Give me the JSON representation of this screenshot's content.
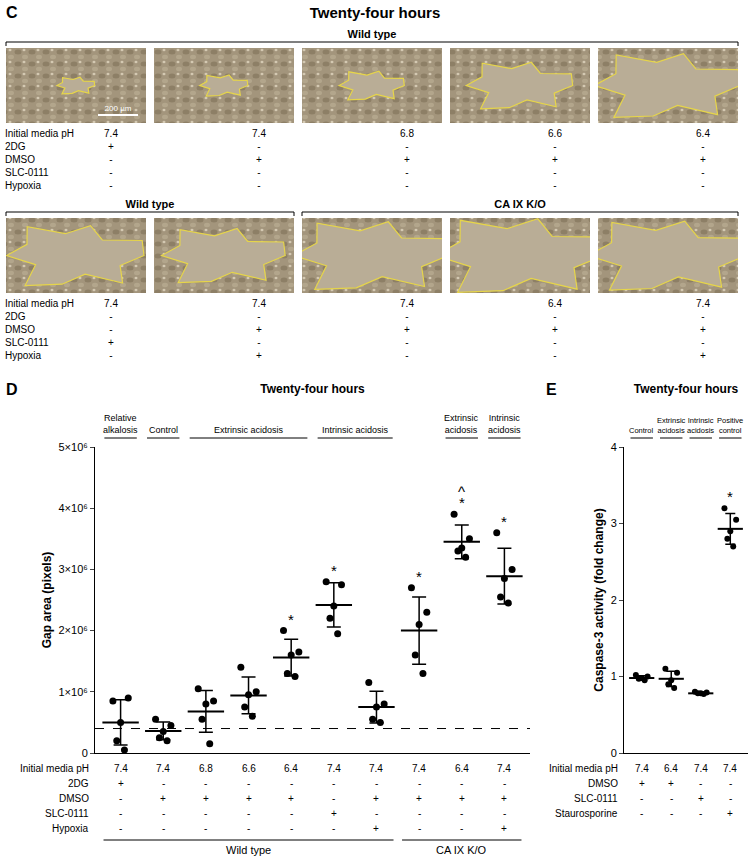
{
  "panel_c": {
    "panel": "C",
    "title": "Twenty-four hours",
    "scale_bar": "200 µm",
    "row_labels": [
      "Initial media pH",
      "2DG",
      "DMSO",
      "SLC-0111",
      "Hypoxia"
    ],
    "rows": [
      {
        "groups": [
          {
            "label": "Wild type",
            "count": 5
          }
        ],
        "columns": [
          [
            "7.4",
            "+",
            "-",
            "-",
            "-"
          ],
          [
            "7.4",
            "-",
            "+",
            "-",
            "-"
          ],
          [
            "6.8",
            "-",
            "+",
            "-",
            "-"
          ],
          [
            "6.6",
            "-",
            "+",
            "-",
            "-"
          ],
          [
            "6.4",
            "-",
            "+",
            "-",
            "-"
          ]
        ]
      },
      {
        "groups": [
          {
            "label": "Wild type",
            "count": 2
          },
          {
            "label": "CA IX K/O",
            "count": 3
          }
        ],
        "columns": [
          [
            "7.4",
            "-",
            "-",
            "+",
            "-"
          ],
          [
            "7.4",
            "-",
            "+",
            "-",
            "+"
          ],
          [
            "7.4",
            "-",
            "+",
            "-",
            "-"
          ],
          [
            "6.4",
            "-",
            "+",
            "-",
            "-"
          ],
          [
            "7.4",
            "-",
            "+",
            "-",
            "+"
          ]
        ]
      }
    ]
  },
  "chart_data": [
    {
      "type": "scatter",
      "panel": "D",
      "title": "Twenty-four hours",
      "y_label": "Gap area (pixels)",
      "categories": [
        null,
        null,
        null,
        null,
        null,
        null,
        null,
        null,
        null,
        null
      ],
      "values": [
        500000,
        360000,
        680000,
        940000,
        1560000,
        2420000,
        750000,
        2000000,
        3450000,
        2890000
      ],
      "error": [
        370000,
        145000,
        340000,
        300000,
        300000,
        360000,
        260000,
        550000,
        275000,
        455000
      ],
      "points": [
        [
          850000,
          900000,
          500000,
          200000,
          50000
        ],
        [
          550000,
          450000,
          350000,
          250000,
          200000
        ],
        [
          1050000,
          850000,
          800000,
          550000,
          150000
        ],
        [
          1400000,
          1000000,
          950000,
          750000,
          600000
        ],
        [
          2000000,
          1650000,
          1600000,
          1300000,
          1250000
        ],
        [
          2800000,
          2750000,
          2400000,
          2200000,
          1950000
        ],
        [
          1150000,
          800000,
          750000,
          550000,
          500000
        ],
        [
          2700000,
          2300000,
          2100000,
          1600000,
          1300000
        ],
        [
          3900000,
          3500000,
          3350000,
          3300000,
          3200000
        ],
        [
          3600000,
          3000000,
          2850000,
          2550000,
          2450000
        ]
      ],
      "reference_line": 400000,
      "color": "#000000",
      "marker": "circle",
      "grid": false,
      "tick_labels": "y",
      "ylim": [
        0,
        5000000
      ],
      "yticks": [
        0,
        {
          "value": 1000000,
          "label": "1×10⁶"
        },
        {
          "value": 2000000,
          "label": "2×10⁶"
        },
        {
          "value": 3000000,
          "label": "3×10⁶"
        },
        {
          "value": 4000000,
          "label": "4×10⁶"
        },
        {
          "value": 5000000,
          "label": "5×10⁶"
        }
      ],
      "header_groups": [
        {
          "label": "Relative alkalosis",
          "from": 0,
          "to": 0
        },
        {
          "label": "Control",
          "from": 1,
          "to": 1
        },
        {
          "label": "Extrinsic acidosis",
          "from": 2,
          "to": 4
        },
        {
          "label": "Intrinsic acidosis",
          "from": 5,
          "to": 6
        },
        {
          "label": "Extrinsic acidosis",
          "from": 8,
          "to": 8
        },
        {
          "label": "Intrinsic acidosis",
          "from": 9,
          "to": 9
        }
      ],
      "condition_rows": [
        "Initial media pH",
        "2DG",
        "DMSO",
        "SLC-0111",
        "Hypoxia"
      ],
      "condition_columns": [
        [
          "7.4",
          "+",
          "-",
          "-",
          "-"
        ],
        [
          "7.4",
          "-",
          "+",
          "-",
          "-"
        ],
        [
          "6.8",
          "-",
          "+",
          "-",
          "-"
        ],
        [
          "6.6",
          "-",
          "+",
          "-",
          "-"
        ],
        [
          "6.4",
          "-",
          "+",
          "-",
          "-"
        ],
        [
          "7.4",
          "-",
          "-",
          "+",
          "-"
        ],
        [
          "7.4",
          "-",
          "+",
          "-",
          "+"
        ],
        [
          "7.4",
          "-",
          "+",
          "-",
          "-"
        ],
        [
          "6.4",
          "-",
          "+",
          "-",
          "-"
        ],
        [
          "7.4",
          "-",
          "+",
          "-",
          "+"
        ]
      ],
      "bottom_groups": [
        {
          "label": "Wild type",
          "from": 0,
          "to": 6
        },
        {
          "label": "CA IX K/O",
          "from": 7,
          "to": 9
        }
      ],
      "significance": [
        {
          "index": 4,
          "label": "*"
        },
        {
          "index": 5,
          "label": "*"
        },
        {
          "index": 7,
          "label": "*"
        },
        {
          "index": 8,
          "label": "*"
        },
        {
          "index": 8,
          "label": "^"
        },
        {
          "index": 9,
          "label": "*"
        }
      ]
    },
    {
      "type": "scatter",
      "panel": "E",
      "title": "Twenty-four hours",
      "y_label": "Caspase-3 activity (fold change)",
      "categories": [
        null,
        null,
        null,
        null
      ],
      "values": [
        0.98,
        0.97,
        0.78,
        2.93
      ],
      "error": [
        0.03,
        0.1,
        0.01,
        0.2
      ],
      "points": [
        [
          1.02,
          1.0,
          0.98,
          0.97,
          0.95
        ],
        [
          1.1,
          1.05,
          0.95,
          0.9,
          0.85
        ],
        [
          0.8,
          0.79,
          0.78,
          0.78,
          0.77
        ],
        [
          3.2,
          3.05,
          2.9,
          2.8,
          2.7
        ]
      ],
      "color": "#000000",
      "marker": "circle",
      "grid": false,
      "tick_labels": "y",
      "ylim": [
        0,
        4
      ],
      "yticks": [
        0,
        1,
        2,
        3,
        4
      ],
      "header_groups": [
        {
          "label": "Control",
          "from": 0,
          "to": 0
        },
        {
          "label": "Extrinsic acidosis",
          "from": 1,
          "to": 1
        },
        {
          "label": "Intrinsic acidosis",
          "from": 2,
          "to": 2
        },
        {
          "label": "Positive control",
          "from": 3,
          "to": 3
        }
      ],
      "condition_rows": [
        "Initial media pH",
        "DMSO",
        "SLC-0111",
        "Staurosporine"
      ],
      "condition_columns": [
        [
          "7.4",
          "+",
          "-",
          "-"
        ],
        [
          "6.4",
          "+",
          "-",
          "-"
        ],
        [
          "7.4",
          "-",
          "+",
          "-"
        ],
        [
          "7.4",
          "-",
          "-",
          "+"
        ]
      ],
      "significance": [
        {
          "index": 3,
          "label": "*"
        }
      ]
    }
  ]
}
